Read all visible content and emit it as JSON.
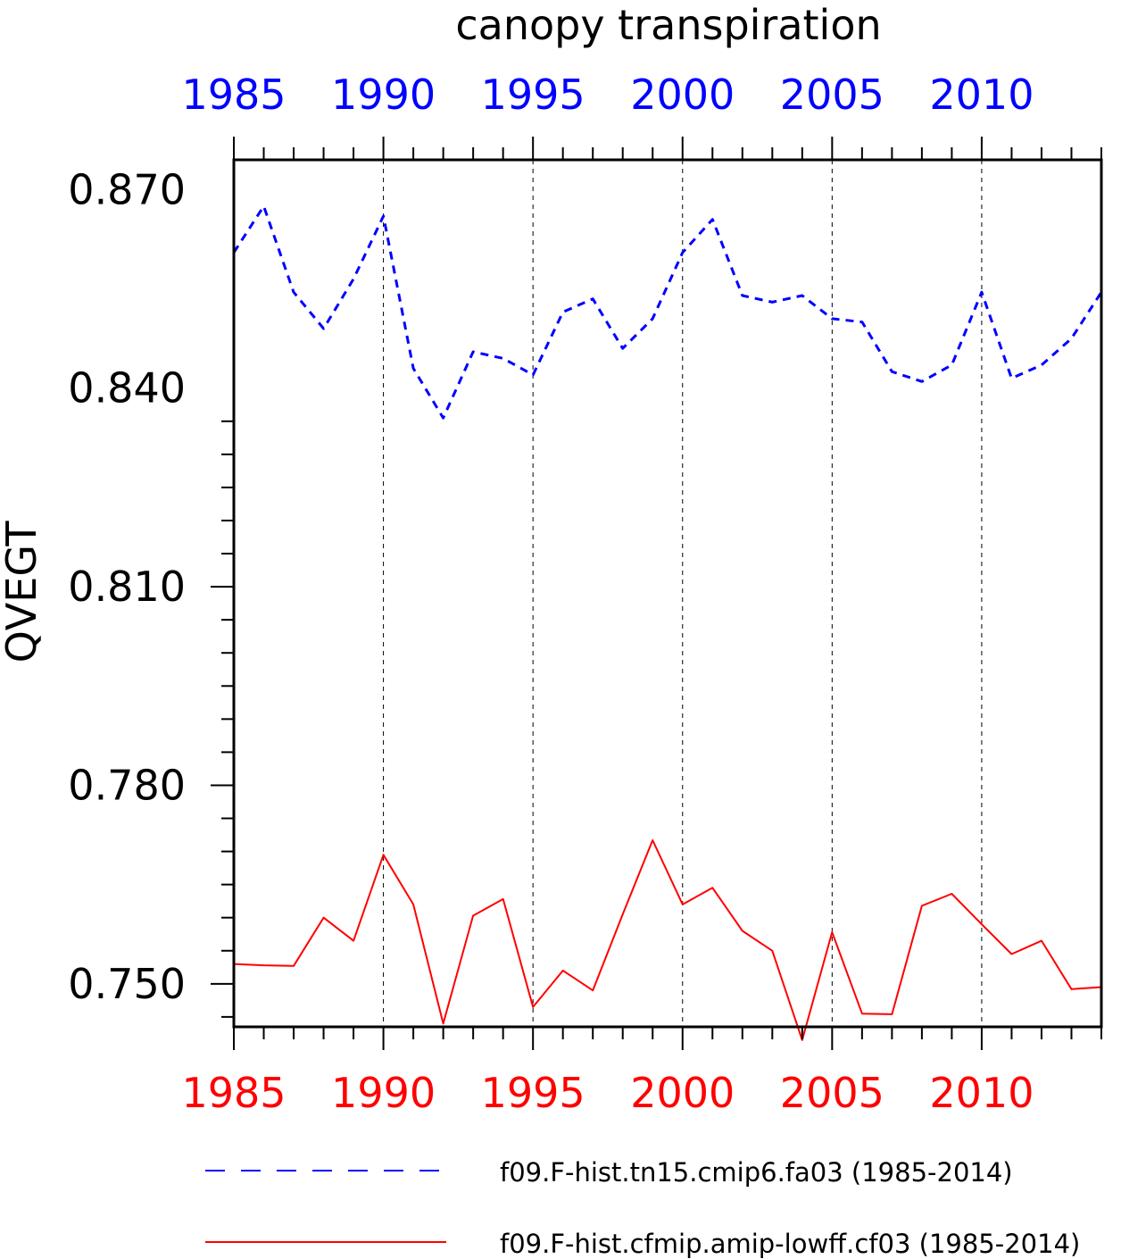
{
  "chart_data": {
    "type": "line",
    "title": "canopy transpiration",
    "ylabel": "QVEGT",
    "xlabel": "",
    "xlim": [
      1985,
      2014
    ],
    "ylim": [
      0.7435,
      0.8745
    ],
    "y_ticks_major": [
      0.75,
      0.78,
      0.81,
      0.84,
      0.87
    ],
    "y_tick_labels": [
      "0.750",
      "0.780",
      "0.810",
      "0.840",
      "0.870"
    ],
    "x_ticks_major": [
      1985,
      1990,
      1995,
      2000,
      2005,
      2010
    ],
    "x_tick_labels_top": [
      "1985",
      "1990",
      "1995",
      "2000",
      "2005",
      "2010"
    ],
    "x_tick_labels_bottom": [
      "1985",
      "1990",
      "1995",
      "2000",
      "2005",
      "2010"
    ],
    "top_axis_color": "#0000ff",
    "bottom_axis_color": "#ff0000",
    "vertical_gridlines": [
      1990,
      1995,
      2000,
      2005,
      2010
    ],
    "legend_placement": "bottom",
    "x": [
      1985,
      1986,
      1987,
      1988,
      1989,
      1990,
      1991,
      1992,
      1993,
      1994,
      1995,
      1996,
      1997,
      1998,
      1999,
      2000,
      2001,
      2002,
      2003,
      2004,
      2005,
      2006,
      2007,
      2008,
      2009,
      2010,
      2011,
      2012,
      2013,
      2014
    ],
    "series": [
      {
        "name": "f09.F-hist.tn15.cmip6.fa03 (1985-2014)",
        "color": "#0000ff",
        "style": "dashed",
        "values": [
          0.8605,
          0.8675,
          0.8545,
          0.849,
          0.8565,
          0.866,
          0.843,
          0.8355,
          0.8455,
          0.8445,
          0.842,
          0.8515,
          0.8535,
          0.846,
          0.8505,
          0.8605,
          0.8655,
          0.854,
          0.853,
          0.854,
          0.8505,
          0.85,
          0.8425,
          0.841,
          0.8435,
          0.8545,
          0.8415,
          0.8435,
          0.8475,
          0.8545
        ]
      },
      {
        "name": "f09.F-hist.cfmip.amip-lowff.cf03 (1985-2014)",
        "color": "#ff0000",
        "style": "solid",
        "values": [
          0.753,
          0.7528,
          0.7527,
          0.76,
          0.7565,
          0.7695,
          0.762,
          0.744,
          0.7603,
          0.7628,
          0.7465,
          0.752,
          0.749,
          0.7605,
          0.7717,
          0.762,
          0.7645,
          0.758,
          0.755,
          0.7415,
          0.7578,
          0.7455,
          0.7454,
          0.7618,
          0.7636,
          0.759,
          0.7545,
          0.7565,
          0.7492,
          0.7495
        ]
      }
    ]
  }
}
